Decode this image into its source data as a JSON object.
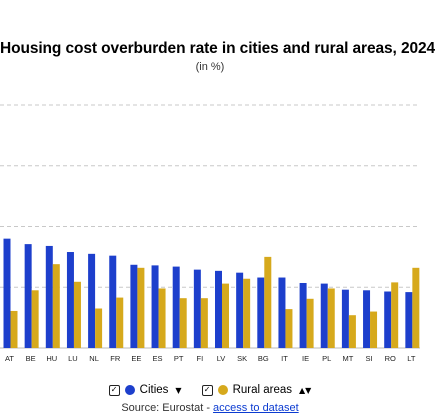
{
  "chart_data": {
    "type": "bar",
    "title": "Housing cost overburden rate in cities and rural areas, 2024",
    "subtitle": "(in %)",
    "categories": [
      "AT",
      "BE",
      "HU",
      "LU",
      "NL",
      "FR",
      "EE",
      "ES",
      "PT",
      "FI",
      "LV",
      "SK",
      "BG",
      "IT",
      "IE",
      "PL",
      "MT",
      "SI",
      "RO",
      "LT"
    ],
    "series": [
      {
        "name": "Cities",
        "color": "#1d3fcc",
        "values": [
          18.0,
          17.1,
          16.8,
          15.8,
          15.5,
          15.2,
          13.7,
          13.6,
          13.4,
          12.9,
          12.7,
          12.4,
          11.6,
          11.6,
          10.7,
          10.6,
          9.6,
          9.5,
          9.3,
          9.2
        ]
      },
      {
        "name": "Rural areas",
        "color": "#d6a91c",
        "values": [
          6.1,
          9.5,
          13.8,
          10.9,
          6.5,
          8.3,
          13.2,
          9.8,
          8.2,
          8.2,
          10.6,
          11.4,
          15.0,
          6.4,
          8.1,
          9.8,
          5.4,
          6.0,
          10.8,
          13.2
        ]
      }
    ],
    "ylim": [
      0,
      40
    ],
    "gridlines": [
      10,
      20,
      30,
      40
    ],
    "grid": true,
    "legend": "bottom"
  },
  "legend": {
    "cities_label": "Cities",
    "rural_label": "Rural areas"
  },
  "source": {
    "prefix": "Source: Eurostat - ",
    "link": "access to dataset"
  }
}
